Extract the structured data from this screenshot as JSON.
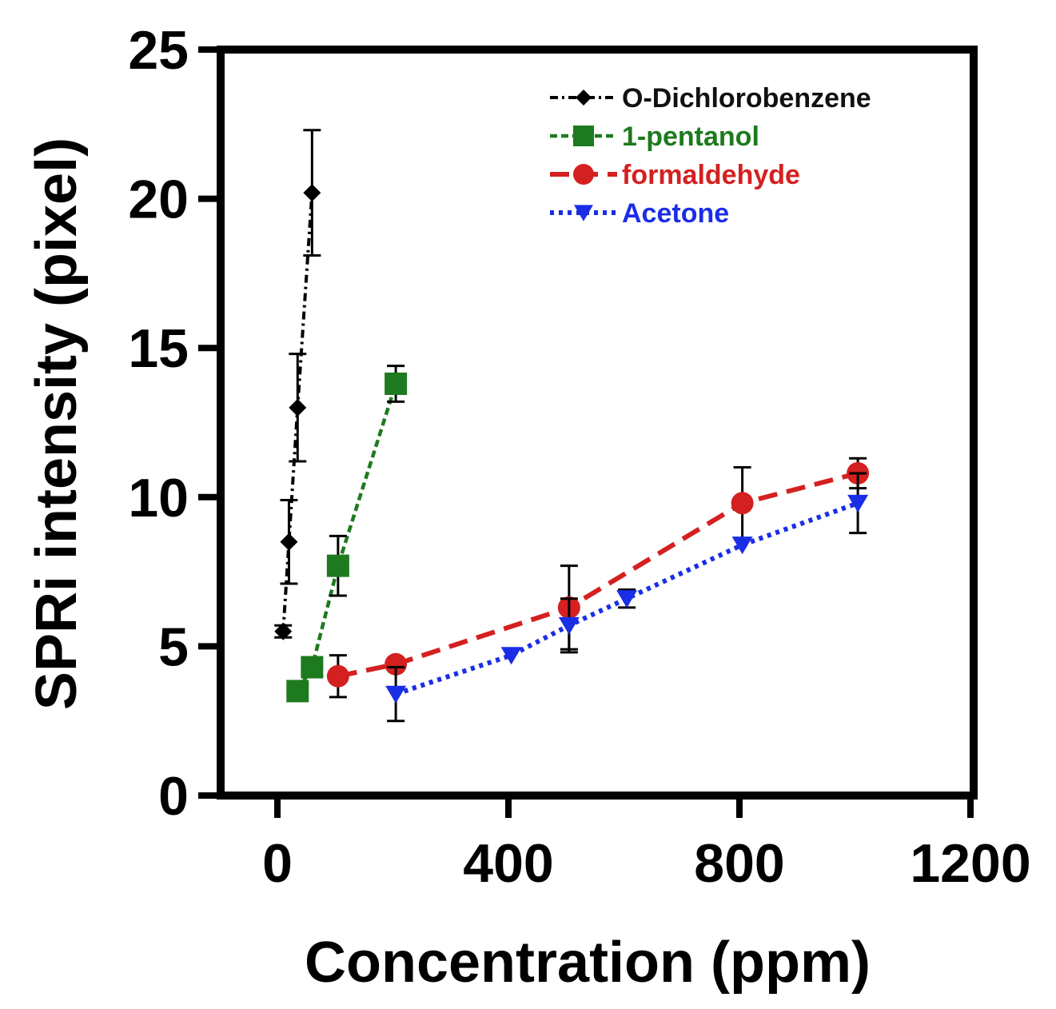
{
  "chart_data": {
    "type": "scatter",
    "xlabel": "Concentration (ppm)",
    "ylabel": "SPRi intensity (pixel)",
    "xlim": [
      -120,
      1200
    ],
    "ylim": [
      0,
      25
    ],
    "x_ticks": [
      0,
      400,
      800,
      1200
    ],
    "y_ticks": [
      0,
      5,
      10,
      15,
      20,
      25
    ],
    "grid": false,
    "legend_position": "top-right",
    "series": [
      {
        "name": "O-Dichlorobenzene",
        "color": "#000000",
        "marker": "diamond",
        "line_style": "dash-dot",
        "points": [
          {
            "x": 10,
            "y": 5.5,
            "err": 0.2
          },
          {
            "x": 20,
            "y": 8.5,
            "err": 1.4
          },
          {
            "x": 35,
            "y": 13.0,
            "err": 1.8
          },
          {
            "x": 60,
            "y": 20.2,
            "err": 2.1
          }
        ]
      },
      {
        "name": "1-pentanol",
        "color": "#1e7a1e",
        "marker": "square",
        "line_style": "dashed",
        "points": [
          {
            "x": 35,
            "y": 3.5,
            "err": 0.0
          },
          {
            "x": 60,
            "y": 4.3,
            "err": 0.0
          },
          {
            "x": 105,
            "y": 7.7,
            "err": 1.0
          },
          {
            "x": 205,
            "y": 13.8,
            "err": 0.6
          }
        ]
      },
      {
        "name": "formaldehyde",
        "color": "#d42020",
        "marker": "circle",
        "line_style": "long-dashed",
        "points": [
          {
            "x": 105,
            "y": 4.0,
            "err": 0.7
          },
          {
            "x": 205,
            "y": 4.4,
            "err": 0.0
          },
          {
            "x": 505,
            "y": 6.3,
            "err": 1.4
          },
          {
            "x": 805,
            "y": 9.8,
            "err": 1.2
          },
          {
            "x": 1005,
            "y": 10.8,
            "err": 0.5
          }
        ]
      },
      {
        "name": "Acetone",
        "color": "#1a2ee6",
        "marker": "triangle-down",
        "line_style": "dotted",
        "points": [
          {
            "x": 205,
            "y": 3.4,
            "err": 0.9
          },
          {
            "x": 405,
            "y": 4.7,
            "err": 0.0
          },
          {
            "x": 505,
            "y": 5.7,
            "err": 0.9
          },
          {
            "x": 605,
            "y": 6.6,
            "err": 0.3
          },
          {
            "x": 805,
            "y": 8.4,
            "err": 0.0
          },
          {
            "x": 1005,
            "y": 9.8,
            "err": 1.0
          }
        ]
      }
    ]
  }
}
